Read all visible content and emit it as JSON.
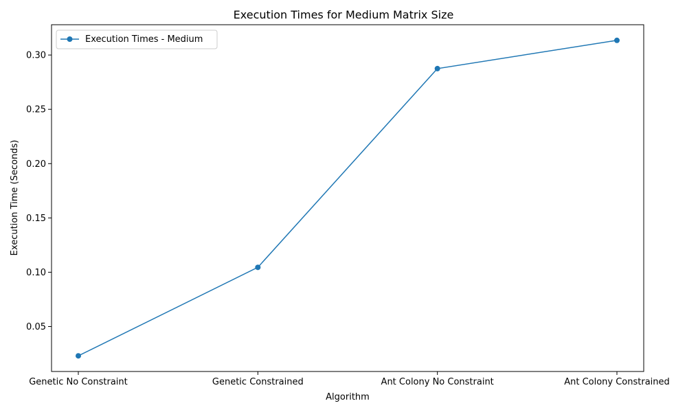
{
  "chart_data": {
    "type": "line",
    "title": "Execution Times for Medium Matrix Size",
    "xlabel": "Algorithm",
    "ylabel": "Execution Time (Seconds)",
    "categories": [
      "Genetic No Constraint",
      "Genetic Constrained",
      "Ant Colony No Constraint",
      "Ant Colony Constrained"
    ],
    "series": [
      {
        "name": "Execution Times - Medium",
        "values": [
          0.023,
          0.1045,
          0.2875,
          0.3135
        ],
        "color": "#1f77b4",
        "marker": "circle"
      }
    ],
    "yticks": [
      "0.05",
      "0.10",
      "0.15",
      "0.20",
      "0.25",
      "0.30"
    ],
    "ylim": [
      0.0086,
      0.3279
    ],
    "grid": false,
    "legend_position": "top-left"
  }
}
